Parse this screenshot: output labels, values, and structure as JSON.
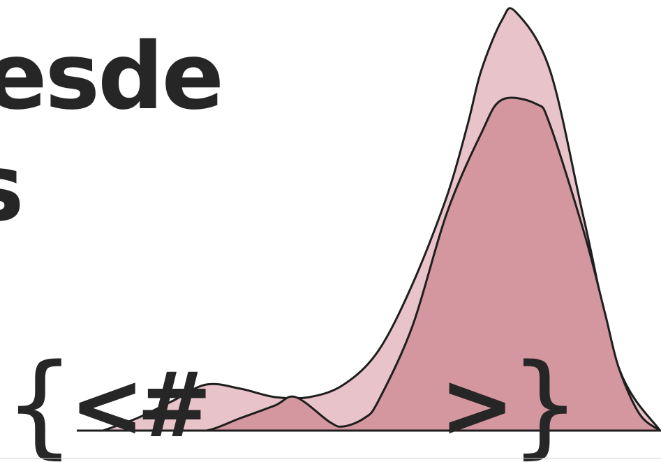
{
  "headline": {
    "line1": "esde",
    "line2": "s"
  },
  "glyphs": {
    "brace_left": "{",
    "angle_left": "<",
    "hash": "#",
    "angle_right": ">",
    "brace_right": "}"
  },
  "chart_data": {
    "type": "area",
    "title": "",
    "xlabel": "",
    "ylabel": "",
    "xlim": [
      0,
      100
    ],
    "ylim": [
      0,
      1
    ],
    "grid": false,
    "legend": "none",
    "colors": {
      "back": "#e8c3c9",
      "front": "#d4979f",
      "outline": "#1e1e1e"
    },
    "series": [
      {
        "x": [
          15,
          20,
          25,
          30,
          35,
          40,
          45,
          50,
          55,
          60,
          65,
          68,
          70,
          73,
          75,
          80,
          85,
          90,
          96
        ],
        "y": [
          0.0,
          0.03,
          0.07,
          0.11,
          0.1,
          0.08,
          0.08,
          0.11,
          0.19,
          0.35,
          0.56,
          0.73,
          0.86,
          0.98,
          1.0,
          0.86,
          0.5,
          0.15,
          0.0
        ]
      },
      {
        "x": [
          15,
          25,
          30,
          35,
          40,
          43,
          48,
          50,
          53,
          55,
          60,
          65,
          70,
          73,
          78,
          80,
          85,
          88,
          90,
          93,
          96
        ],
        "y": [
          0.0,
          0.0,
          0.0,
          0.03,
          0.06,
          0.08,
          0.02,
          0.01,
          0.03,
          0.07,
          0.25,
          0.52,
          0.71,
          0.79,
          0.78,
          0.73,
          0.47,
          0.28,
          0.15,
          0.04,
          0.0
        ]
      }
    ]
  }
}
